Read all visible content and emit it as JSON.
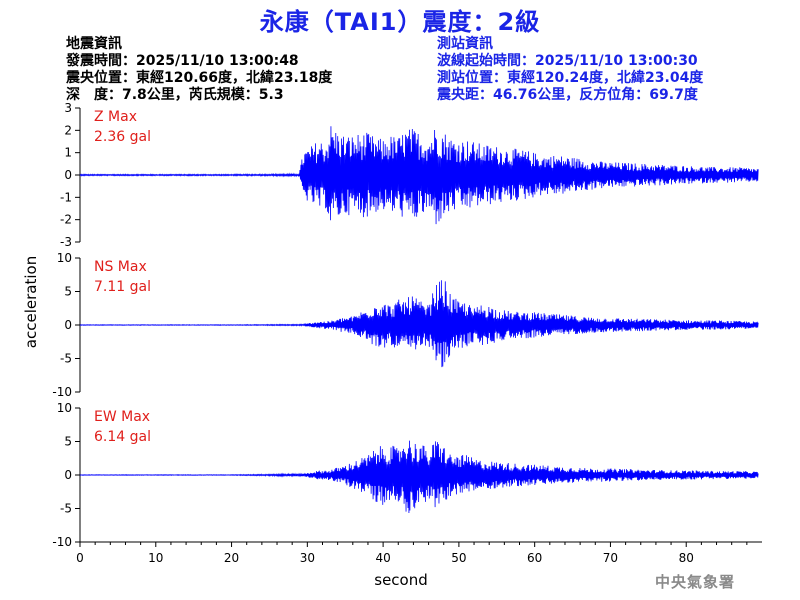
{
  "title": "永康（TAI1）震度：2級",
  "quake_info": [
    "地震資訊",
    "發震時間：2025/11/10 13:00:48",
    "震央位置：東經120.66度，北緯23.18度",
    "深　度：7.8公里，芮氏規模：5.3"
  ],
  "station_info": [
    "測站資訊",
    "波線起始時間：2025/11/10 13:00:30",
    "測站位置：東經120.24度，北緯23.04度",
    "震央距：46.76公里，反方位角：69.7度"
  ],
  "agency": "中央氣象署",
  "colors": {
    "title": "#1a24e6",
    "trace": "#0000ff",
    "max_label": "#e0201c",
    "axis": "#000000",
    "agency": "#8a8a8a"
  },
  "chart_data": {
    "type": "line",
    "xlabel": "second",
    "ylabel": "acceleration",
    "xlim": [
      0,
      90
    ],
    "xticks": [
      0,
      10,
      20,
      30,
      40,
      50,
      60,
      70,
      80
    ],
    "panels": [
      {
        "name": "Z",
        "max_label": "Z Max",
        "max_value": "2.36 gal",
        "ylim": [
          -3,
          3
        ],
        "yticks": [
          -3,
          -2,
          -1,
          0,
          1,
          2,
          3
        ],
        "x": [
          0,
          10,
          20,
          28.9,
          29.5,
          30.5,
          31.5,
          32.5,
          33,
          34,
          35,
          36,
          37,
          38,
          39,
          40,
          41,
          42,
          43,
          44,
          45,
          46,
          47,
          48,
          49,
          50,
          51,
          52,
          53,
          55,
          57,
          59,
          61,
          63,
          65,
          67,
          69,
          72,
          75,
          78,
          81,
          84,
          87,
          89.5
        ],
        "values": [
          0.03,
          -0.03,
          0.03,
          -0.05,
          1.1,
          -1.3,
          1.6,
          -1.5,
          2.36,
          -2.0,
          1.8,
          -1.8,
          1.9,
          -1.9,
          1.7,
          -1.6,
          1.8,
          -1.7,
          2.1,
          -2.1,
          1.9,
          -1.7,
          2.3,
          -2.0,
          1.7,
          -1.6,
          1.6,
          -1.5,
          1.4,
          -1.3,
          1.2,
          -1.1,
          0.9,
          -0.9,
          0.8,
          -0.7,
          0.6,
          -0.55,
          0.5,
          -0.45,
          0.4,
          -0.35,
          0.35,
          -0.3
        ]
      },
      {
        "name": "NS",
        "max_label": "NS Max",
        "max_value": "7.11 gal",
        "ylim": [
          -10,
          10
        ],
        "yticks": [
          -10,
          -5,
          0,
          5,
          10
        ],
        "x": [
          0,
          10,
          20,
          29.5,
          31,
          33,
          35,
          36,
          37,
          38,
          39,
          40,
          41,
          42,
          43,
          44,
          45,
          46,
          47,
          48,
          49,
          50,
          51,
          52,
          53,
          54,
          55,
          57,
          59,
          61,
          63,
          65,
          67,
          69,
          72,
          75,
          78,
          81,
          84,
          87,
          89.5
        ],
        "values": [
          0.05,
          -0.05,
          0.05,
          -0.1,
          0.5,
          -0.6,
          1.2,
          -1.3,
          2.0,
          -2.5,
          3.5,
          -3.5,
          3.0,
          -3.8,
          4.0,
          -4.5,
          3.5,
          -3.0,
          6.3,
          -7.11,
          4.5,
          -3.5,
          3.5,
          -2.5,
          3.2,
          -3.0,
          2.5,
          -2.0,
          2.0,
          -1.8,
          1.6,
          -1.4,
          1.2,
          -1.1,
          1.0,
          -0.9,
          0.8,
          -0.7,
          0.7,
          -0.6,
          0.5
        ]
      },
      {
        "name": "EW",
        "max_label": "EW Max",
        "max_value": "6.14 gal",
        "ylim": [
          -10,
          10
        ],
        "yticks": [
          -10,
          -5,
          0,
          5,
          10
        ],
        "x": [
          0,
          10,
          20,
          29.5,
          31,
          33,
          35,
          36,
          37,
          38,
          39,
          40,
          41,
          42,
          43,
          44,
          45,
          46,
          47,
          48,
          49,
          50,
          51,
          52,
          53,
          55,
          57,
          59,
          61,
          63,
          65,
          67,
          69,
          72,
          75,
          78,
          81,
          84,
          87,
          89.5
        ],
        "values": [
          0.05,
          -0.05,
          0.05,
          -0.2,
          0.6,
          -0.8,
          1.5,
          -2.0,
          2.5,
          -3.0,
          4.0,
          -4.5,
          4.5,
          -4.0,
          6.14,
          -5.0,
          5.0,
          -3.5,
          5.5,
          -4.5,
          3.0,
          -3.0,
          3.0,
          -2.5,
          2.2,
          -2.0,
          1.8,
          -1.6,
          1.5,
          -1.3,
          1.2,
          -1.0,
          1.0,
          -0.9,
          0.8,
          -0.7,
          0.7,
          -0.6,
          0.6,
          -0.5
        ]
      }
    ]
  }
}
